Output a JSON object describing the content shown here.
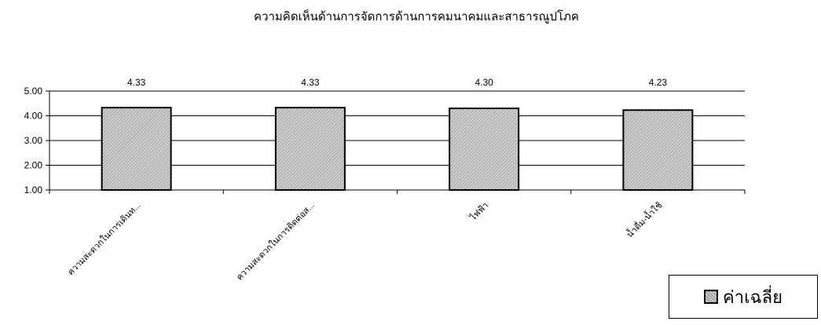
{
  "chart_data": {
    "type": "bar",
    "title": "ความคิดเห็นด้านการจัดการด้านการคมนาคมและสาธารณูปโภค",
    "categories": [
      "ความสะดวกในการเดินท...",
      "ความสะดวกในการติดต่อส...",
      "ไฟฟ้า",
      "น้ำดื่ม-น้ำใช้"
    ],
    "series": [
      {
        "name": "ค่าเฉลี่ย",
        "values": [
          4.33,
          4.33,
          4.3,
          4.23
        ]
      }
    ],
    "data_labels": [
      "4.33",
      "4.33",
      "4.30",
      "4.23"
    ],
    "ylim": [
      1.0,
      5.0
    ],
    "yticks": [
      "5.00",
      "4.00",
      "3.00",
      "2.00",
      "1.00"
    ],
    "grid": true,
    "legend_position": "bottom-right",
    "bar_fill": "#cfcfcf",
    "bar_hatch": "#8a8a8a",
    "bar_stroke": "#000000"
  }
}
